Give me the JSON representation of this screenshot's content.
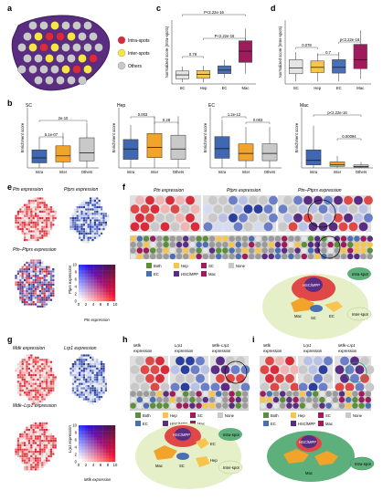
{
  "colors": {
    "sc": "#e5e5e5",
    "hep": "#f7c44e",
    "ec": "#4a6fb5",
    "mac": "#9e1c5c",
    "red": "#d92b3a",
    "yellow": "#f5e642",
    "gray": "#c9c9c9",
    "purple": "#5a2d82",
    "both": "#5b8f3a",
    "hsc": "#5a2d82",
    "green_bg": "#e5f0c8",
    "cell_green": "#5db07c"
  },
  "panels": {
    "a": "a",
    "b": "b",
    "c": "c",
    "d": "d",
    "e": "e",
    "f": "f",
    "g": "g",
    "h": "h",
    "i": "i"
  },
  "legend_a": [
    "Intra-spots",
    "Inter-spots",
    "Others"
  ],
  "chart_data": [
    {
      "id": "c",
      "type": "box",
      "ylabel": "Normalized score (Intra-spots)",
      "categories": [
        "SC",
        "Hep",
        "EC",
        "Mac"
      ],
      "colors": [
        "#e5e5e5",
        "#f7c44e",
        "#4a6fb5",
        "#9e1c5c"
      ],
      "boxes": [
        {
          "q1": -0.6,
          "med": -0.15,
          "q3": 0.3,
          "lo": -1.0,
          "hi": 0.8
        },
        {
          "q1": -0.55,
          "med": -0.1,
          "q3": 0.35,
          "lo": -1.0,
          "hi": 0.9
        },
        {
          "q1": 0.0,
          "med": 0.4,
          "q3": 0.9,
          "lo": -0.5,
          "hi": 1.6
        },
        {
          "q1": 1.3,
          "med": 2.6,
          "q3": 3.8,
          "lo": 0.0,
          "hi": 5.2
        }
      ],
      "ylim": [
        -1.2,
        6.2
      ],
      "annotations": [
        "P<2.22e-16",
        "P<2.22e-16",
        "0.79"
      ]
    },
    {
      "id": "d",
      "type": "box",
      "ylabel": "Normalized score (Inter-spots)",
      "categories": [
        "SC",
        "Hep",
        "EC",
        "Mac"
      ],
      "colors": [
        "#e5e5e5",
        "#f7c44e",
        "#4a6fb5",
        "#9e1c5c"
      ],
      "boxes": [
        {
          "q1": -0.4,
          "med": 0.05,
          "q3": 0.7,
          "lo": -1.0,
          "hi": 1.3
        },
        {
          "q1": -0.3,
          "med": 0.1,
          "q3": 0.6,
          "lo": -1.0,
          "hi": 1.2
        },
        {
          "q1": -0.35,
          "med": 0.1,
          "q3": 0.7,
          "lo": -1.0,
          "hi": 1.3
        },
        {
          "q1": 0.0,
          "med": 0.7,
          "q3": 1.9,
          "lo": -0.8,
          "hi": 3.0
        }
      ],
      "ylim": [
        -1.2,
        3.8
      ],
      "annotations": [
        "0.078",
        "0.7",
        "p<2.22e-16"
      ]
    },
    {
      "id": "b-sc",
      "type": "box",
      "title": "SC",
      "ylabel": "Enrichment score",
      "categories": [
        "Intra",
        "Inter",
        "Others"
      ],
      "colors": [
        "#3f68b0",
        "#f1a429",
        "#c9c9c9"
      ],
      "boxes": [
        {
          "q1": 0.05,
          "med": 0.1,
          "q3": 0.18,
          "lo": 0.0,
          "hi": 0.3
        },
        {
          "q1": 0.06,
          "med": 0.12,
          "q3": 0.22,
          "lo": 0.0,
          "hi": 0.35
        },
        {
          "q1": 0.07,
          "med": 0.15,
          "q3": 0.3,
          "lo": 0.0,
          "hi": 0.45
        }
      ],
      "ylim": [
        0,
        0.6
      ],
      "annotations": [
        "5.1e-07",
        "2e-10"
      ]
    },
    {
      "id": "b-hep",
      "type": "box",
      "title": "Hep",
      "ylabel": "Enrichment score",
      "categories": [
        "Intra",
        "Inter",
        "Others"
      ],
      "colors": [
        "#3f68b0",
        "#f1a429",
        "#c9c9c9"
      ],
      "boxes": [
        {
          "q1": 0.1,
          "med": 0.22,
          "q3": 0.33,
          "lo": 0.0,
          "hi": 0.5
        },
        {
          "q1": 0.12,
          "med": 0.24,
          "q3": 0.4,
          "lo": 0.0,
          "hi": 0.6
        },
        {
          "q1": 0.1,
          "med": 0.22,
          "q3": 0.38,
          "lo": 0.0,
          "hi": 0.6
        }
      ],
      "ylim": [
        0,
        0.7
      ],
      "annotations": [
        "0.003",
        "0.28"
      ]
    },
    {
      "id": "b-ec",
      "type": "box",
      "title": "EC",
      "ylabel": "Enrichment score",
      "categories": [
        "Intra",
        "Inter",
        "Others"
      ],
      "colors": [
        "#3f68b0",
        "#f1a429",
        "#c9c9c9"
      ],
      "boxes": [
        {
          "q1": 0.04,
          "med": 0.08,
          "q3": 0.13,
          "lo": 0.0,
          "hi": 0.2
        },
        {
          "q1": 0.03,
          "med": 0.06,
          "q3": 0.1,
          "lo": 0.0,
          "hi": 0.17
        },
        {
          "q1": 0.03,
          "med": 0.06,
          "q3": 0.1,
          "lo": 0.0,
          "hi": 0.17
        }
      ],
      "ylim": [
        0,
        0.25
      ],
      "annotations": [
        "1.2e-12",
        "0.063"
      ]
    },
    {
      "id": "b-mac",
      "type": "box",
      "title": "Mac",
      "ylabel": "Enrichment score",
      "categories": [
        "Intra",
        "Inter",
        "Others"
      ],
      "colors": [
        "#3f68b0",
        "#f1a429",
        "#c9c9c9"
      ],
      "boxes": [
        {
          "q1": 0.02,
          "med": 0.05,
          "q3": 0.12,
          "lo": 0.0,
          "hi": 0.28
        },
        {
          "q1": 0.01,
          "med": 0.02,
          "q3": 0.04,
          "lo": 0.0,
          "hi": 0.08
        },
        {
          "q1": 0.005,
          "med": 0.01,
          "q3": 0.02,
          "lo": 0.0,
          "hi": 0.04
        }
      ],
      "ylim": [
        0,
        0.4
      ],
      "annotations": [
        "p<2.22e-16",
        "0.00094"
      ]
    }
  ],
  "panel_e": {
    "map1": "Ptn expression",
    "map2": "Ptprs expression",
    "map3": "Ptn–Ptprs expression",
    "grid_ylabel": "Ptprs expression",
    "grid_xlabel": "Ptn expression",
    "ticks": [
      "0",
      "2",
      "4",
      "6",
      "8",
      "10"
    ]
  },
  "panel_f": {
    "title1": "Ptn expression",
    "title2": "Ptprs expression",
    "title3": "Ptn–Ptprs expression",
    "legend": [
      "Both",
      "Hep",
      "SC",
      "None",
      "EC",
      "HSC/MPP",
      "Mac"
    ],
    "cells": [
      "HSC/MPP",
      "SC",
      "EC",
      "Mac"
    ],
    "spots": [
      "Intra-spot",
      "Inter-spot"
    ]
  },
  "panel_g": {
    "map1": "Mdk expression",
    "map2": "Lrp1 expression",
    "map3": "Mdk–Lrp1 expression",
    "grid_ylabel": "Lrp1 expression",
    "grid_xlabel": "Mdk expression",
    "ticks": [
      "0",
      "2",
      "4",
      "6",
      "8",
      "10"
    ]
  },
  "panel_h": {
    "title1": "Mdk",
    "title1b": "expression",
    "title2": "Lrp1",
    "title2b": "expression",
    "title3": "Mdk–Lrp1",
    "title3b": "expression",
    "legend": [
      "Both",
      "Hep",
      "SC",
      "None",
      "EC",
      "HSC/MPP",
      "Mac"
    ],
    "cells": [
      "HSC/MPP",
      "SC",
      "EC",
      "Hep",
      "Mac"
    ],
    "spots": [
      "Intra-spot",
      "Inter-spot"
    ]
  },
  "panel_i": {
    "title1": "Mdk",
    "title1b": "expression",
    "title2": "Lrp1",
    "title2b": "expression",
    "title3": "Mdk–Lrp1",
    "title3b": "expression",
    "legend": [
      "Both",
      "Hep",
      "SC",
      "None",
      "EC",
      "HSC/MPP",
      "Mac"
    ],
    "cells": [
      "HSC/MPP",
      "Mac"
    ],
    "spots": [
      "Intra-spot"
    ]
  }
}
